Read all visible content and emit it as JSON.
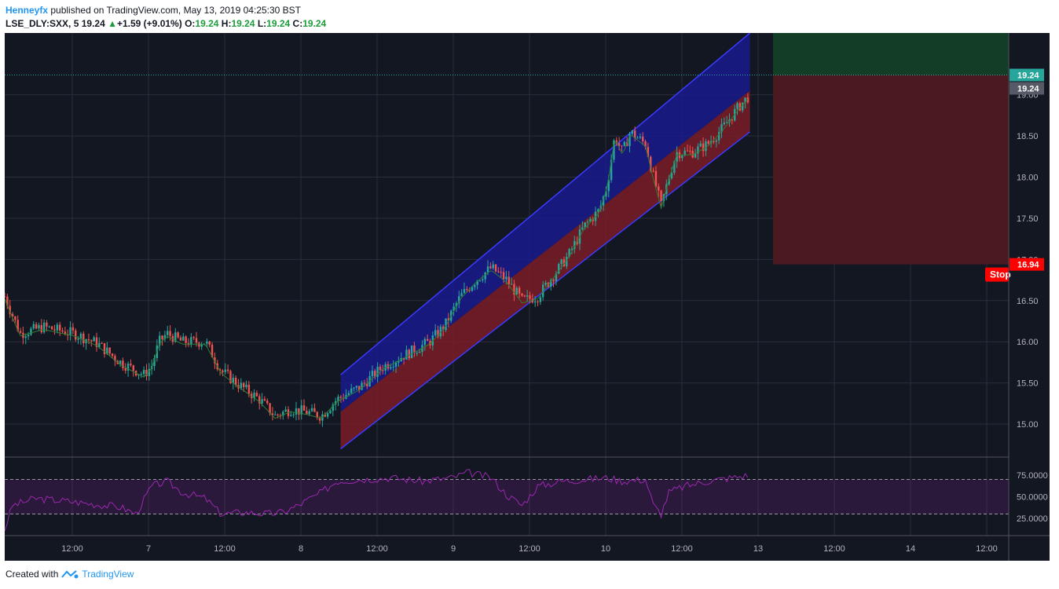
{
  "header": {
    "author": "Henneyfx",
    "published_text": " published on TradingView.com, May 13, 2019 04:25:30 BST",
    "symbol": "LSE_DLY:SXX, 5",
    "last": "19.24",
    "change_arrow": "▲",
    "change": "+1.59 (+9.01%)",
    "o_label": "O:",
    "o_value": "19.24",
    "h_label": "H:",
    "h_value": "19.24",
    "l_label": "L:",
    "l_value": "19.24",
    "c_label": "C:",
    "c_value": "19.24"
  },
  "footer": {
    "created_with": "Created with",
    "brand": "TradingView"
  },
  "colors": {
    "background": "#131722",
    "up": "#26a69a",
    "down": "#ef5350",
    "channel_upper": "#1a1a8c",
    "channel_lower": "#7a1c26",
    "target_zone": "#143d28",
    "stop_zone": "#4a1a20",
    "stop_badge": "#ff0000",
    "rsi": "#9c27b0",
    "grid": "#2a2e39"
  },
  "chart_data": [
    {
      "type": "candlestick",
      "title": "",
      "y_ticks": [
        15.0,
        15.5,
        16.0,
        16.5,
        17.0,
        17.5,
        18.0,
        18.5,
        19.0
      ],
      "ylim": [
        14.6,
        19.75
      ],
      "x_ticks": [
        "12:00",
        "7",
        "12:00",
        "8",
        "12:00",
        "9",
        "12:00",
        "10",
        "12:00",
        "13",
        "12:00",
        "14",
        "12:00"
      ],
      "price_path": [
        [
          0,
          16.55
        ],
        [
          2,
          16.1
        ],
        [
          5,
          16.18
        ],
        [
          9,
          16.1
        ],
        [
          12,
          15.98
        ],
        [
          15,
          15.75
        ],
        [
          18,
          15.6
        ],
        [
          19,
          15.7
        ],
        [
          20,
          16.0
        ],
        [
          21,
          16.1
        ],
        [
          23,
          16.0
        ],
        [
          26,
          16.0
        ],
        [
          28,
          15.65
        ],
        [
          30,
          15.5
        ],
        [
          33,
          15.3
        ],
        [
          35,
          15.1
        ],
        [
          37,
          15.18
        ],
        [
          39,
          15.15
        ],
        [
          41,
          15.1
        ],
        [
          43,
          15.3
        ],
        [
          46,
          15.45
        ],
        [
          49,
          15.7
        ],
        [
          52,
          15.85
        ],
        [
          55,
          16.0
        ],
        [
          57,
          16.2
        ],
        [
          59,
          16.55
        ],
        [
          61,
          16.75
        ],
        [
          63,
          16.9
        ],
        [
          65,
          16.75
        ],
        [
          67,
          16.5
        ],
        [
          69,
          16.55
        ],
        [
          71,
          16.8
        ],
        [
          73,
          17.05
        ],
        [
          75,
          17.4
        ],
        [
          77,
          17.6
        ],
        [
          78,
          17.9
        ],
        [
          79,
          18.5
        ],
        [
          80,
          18.3
        ],
        [
          81,
          18.55
        ],
        [
          83,
          18.4
        ],
        [
          84,
          18.0
        ],
        [
          85,
          17.65
        ],
        [
          86,
          18.0
        ],
        [
          87,
          18.3
        ],
        [
          89,
          18.3
        ],
        [
          91,
          18.4
        ],
        [
          93,
          18.6
        ],
        [
          95,
          18.85
        ],
        [
          96.5,
          19.0
        ]
      ],
      "x_span": 130,
      "highlight_price": "19.24",
      "badges": [
        "19.24",
        "19.24",
        "16.94"
      ],
      "stop_label": "Stop"
    },
    {
      "type": "line",
      "title": "",
      "y_ticks": [
        "75.0000",
        "50.0000",
        "25.0000"
      ],
      "ylim": [
        5,
        95
      ],
      "levels": [
        70,
        30
      ],
      "rsi_path": [
        [
          0,
          12
        ],
        [
          1,
          40
        ],
        [
          4,
          48
        ],
        [
          8,
          45
        ],
        [
          11,
          42
        ],
        [
          15,
          38
        ],
        [
          17,
          30
        ],
        [
          19,
          62
        ],
        [
          21,
          68
        ],
        [
          23,
          55
        ],
        [
          26,
          48
        ],
        [
          28,
          30
        ],
        [
          31,
          32
        ],
        [
          34,
          30
        ],
        [
          36,
          32
        ],
        [
          38,
          40
        ],
        [
          41,
          55
        ],
        [
          43,
          68
        ],
        [
          46,
          70
        ],
        [
          50,
          72
        ],
        [
          54,
          68
        ],
        [
          58,
          72
        ],
        [
          60,
          78
        ],
        [
          63,
          72
        ],
        [
          65,
          52
        ],
        [
          67,
          40
        ],
        [
          69,
          62
        ],
        [
          72,
          68
        ],
        [
          75,
          70
        ],
        [
          78,
          72
        ],
        [
          80,
          68
        ],
        [
          83,
          70
        ],
        [
          84,
          40
        ],
        [
          85,
          30
        ],
        [
          86,
          55
        ],
        [
          88,
          62
        ],
        [
          91,
          68
        ],
        [
          94,
          72
        ],
        [
          96.5,
          75
        ]
      ]
    }
  ]
}
